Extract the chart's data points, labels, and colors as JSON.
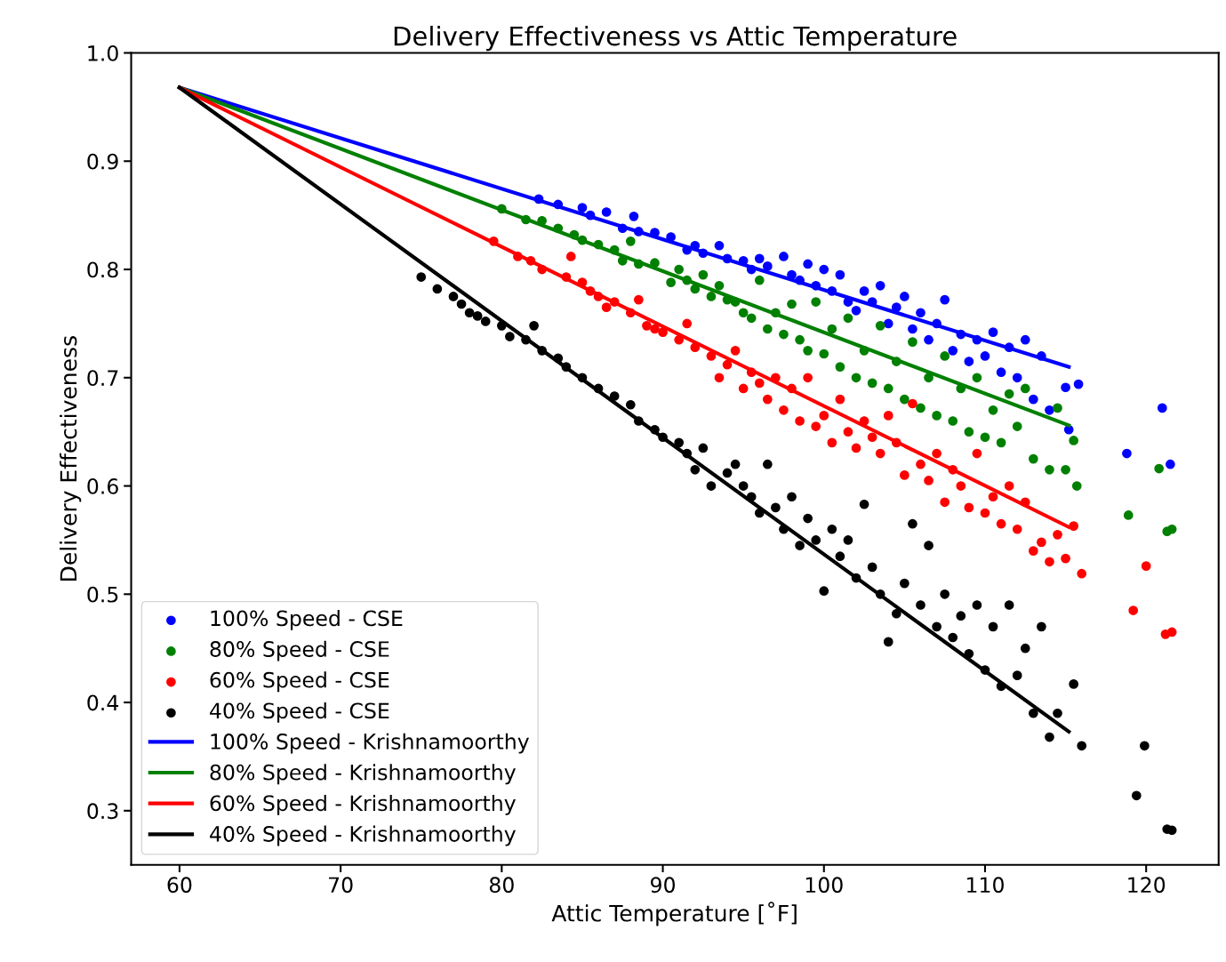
{
  "chart_data": {
    "type": "scatter",
    "title": "Delivery Effectiveness vs Attic Temperature",
    "xlabel": "Attic Temperature [˚F]",
    "ylabel": "Delivery Effectiveness",
    "xlim": [
      57,
      124.5
    ],
    "ylim": [
      0.25,
      1.0
    ],
    "xticks": [
      60,
      70,
      80,
      90,
      100,
      110,
      120
    ],
    "yticks": [
      0.3,
      0.4,
      0.5,
      0.6,
      0.7,
      0.8,
      0.9,
      {
        "value": 1.0,
        "label": "1.0"
      }
    ],
    "legend": "bottom left",
    "series": [
      {
        "marker": "circle",
        "name": "100% Speed - CSE",
        "color": "#0000ff",
        "x": [
          82.3,
          83.5,
          85,
          85.5,
          86.5,
          87.5,
          88.2,
          88.5,
          89.5,
          90.5,
          91.5,
          92,
          92.5,
          93.5,
          94,
          95,
          95.5,
          96,
          96.5,
          97.5,
          98,
          98.5,
          99,
          99.5,
          100,
          100.5,
          101,
          101.5,
          102,
          102.5,
          103,
          103.5,
          104,
          104.5,
          105,
          105.5,
          106,
          106.5,
          107,
          107.5,
          108,
          108.5,
          109,
          109.5,
          110,
          110.5,
          111,
          111.5,
          112,
          112.5,
          113,
          113.5,
          114,
          115,
          115.2,
          115.8,
          118.8,
          121,
          121.5
        ],
        "values": [
          0.865,
          0.86,
          0.857,
          0.85,
          0.853,
          0.838,
          0.849,
          0.835,
          0.834,
          0.83,
          0.818,
          0.822,
          0.815,
          0.822,
          0.81,
          0.808,
          0.8,
          0.81,
          0.803,
          0.812,
          0.795,
          0.79,
          0.805,
          0.785,
          0.8,
          0.78,
          0.795,
          0.77,
          0.762,
          0.78,
          0.77,
          0.785,
          0.75,
          0.765,
          0.775,
          0.745,
          0.76,
          0.735,
          0.75,
          0.772,
          0.725,
          0.74,
          0.715,
          0.735,
          0.72,
          0.742,
          0.705,
          0.728,
          0.7,
          0.735,
          0.68,
          0.72,
          0.67,
          0.691,
          0.652,
          0.694,
          0.63,
          0.672,
          0.62
        ]
      },
      {
        "marker": "circle",
        "name": "80% Speed - CSE",
        "color": "#008000",
        "x": [
          80,
          81.5,
          82.5,
          83.5,
          84.5,
          85,
          86,
          87,
          87.5,
          88,
          88.5,
          89.5,
          90.5,
          91,
          91.5,
          92,
          92.5,
          93,
          93.5,
          94,
          94.5,
          95,
          95.5,
          96,
          96.5,
          97,
          97.5,
          98,
          98.5,
          99,
          99.5,
          100,
          100.5,
          101,
          101.5,
          102,
          102.5,
          103,
          103.5,
          104,
          104.5,
          105,
          105.5,
          106,
          106.5,
          107,
          107.5,
          108,
          108.5,
          109,
          109.5,
          110,
          110.5,
          111,
          111.5,
          112,
          112.5,
          113,
          114,
          114.5,
          115,
          115.5,
          115.7,
          118.9,
          120.8,
          121.3,
          121.6
        ],
        "values": [
          0.856,
          0.846,
          0.845,
          0.838,
          0.832,
          0.827,
          0.823,
          0.818,
          0.808,
          0.826,
          0.805,
          0.806,
          0.788,
          0.8,
          0.79,
          0.782,
          0.795,
          0.775,
          0.785,
          0.772,
          0.77,
          0.76,
          0.755,
          0.79,
          0.745,
          0.76,
          0.74,
          0.768,
          0.735,
          0.725,
          0.77,
          0.722,
          0.745,
          0.71,
          0.755,
          0.7,
          0.725,
          0.695,
          0.748,
          0.69,
          0.715,
          0.68,
          0.733,
          0.672,
          0.7,
          0.665,
          0.72,
          0.66,
          0.69,
          0.65,
          0.7,
          0.645,
          0.67,
          0.64,
          0.685,
          0.655,
          0.69,
          0.625,
          0.615,
          0.672,
          0.615,
          0.642,
          0.6,
          0.573,
          0.616,
          0.558,
          0.56
        ]
      },
      {
        "marker": "circle",
        "name": "60% Speed - CSE",
        "color": "#ff0000",
        "x": [
          79.5,
          81,
          81.8,
          82.5,
          84,
          84.3,
          85,
          85.5,
          86,
          86.5,
          87,
          88,
          88.5,
          89,
          89.5,
          90,
          91,
          91.5,
          92,
          93,
          93.5,
          94,
          94.5,
          95,
          95.5,
          96,
          96.5,
          97,
          97.5,
          98,
          98.5,
          99,
          99.5,
          100,
          100.5,
          101,
          101.5,
          102,
          102.5,
          103,
          103.5,
          104,
          104.5,
          105,
          105.5,
          106,
          106.5,
          107,
          107.5,
          108,
          108.5,
          109,
          109.5,
          110,
          110.5,
          111,
          111.5,
          112,
          112.5,
          113,
          113.5,
          114,
          114.5,
          115,
          115.5,
          116,
          119.2,
          120,
          121.2,
          121.6
        ],
        "values": [
          0.826,
          0.812,
          0.808,
          0.8,
          0.793,
          0.812,
          0.788,
          0.78,
          0.775,
          0.765,
          0.77,
          0.76,
          0.772,
          0.748,
          0.745,
          0.742,
          0.735,
          0.75,
          0.728,
          0.72,
          0.7,
          0.712,
          0.725,
          0.69,
          0.705,
          0.695,
          0.68,
          0.7,
          0.67,
          0.69,
          0.66,
          0.7,
          0.655,
          0.665,
          0.64,
          0.68,
          0.65,
          0.635,
          0.66,
          0.645,
          0.63,
          0.665,
          0.64,
          0.61,
          0.676,
          0.62,
          0.605,
          0.63,
          0.585,
          0.615,
          0.6,
          0.58,
          0.63,
          0.575,
          0.59,
          0.565,
          0.6,
          0.56,
          0.585,
          0.54,
          0.548,
          0.53,
          0.555,
          0.533,
          0.563,
          0.519,
          0.485,
          0.526,
          0.463,
          0.465
        ]
      },
      {
        "marker": "circle",
        "name": "40% Speed - CSE",
        "color": "#000000",
        "x": [
          75,
          76,
          77,
          77.5,
          78,
          78.5,
          79,
          80,
          80.5,
          81.5,
          82,
          82.5,
          83.5,
          84,
          85,
          86,
          87,
          88,
          88.5,
          89.5,
          90,
          91,
          91.5,
          92,
          92.5,
          93,
          94,
          94.5,
          95,
          95.5,
          96,
          96.5,
          97,
          97.5,
          98,
          98.5,
          99,
          99.5,
          100,
          100.5,
          101,
          101.5,
          102,
          102.5,
          103,
          103.5,
          104,
          104.5,
          105,
          105.5,
          106,
          106.5,
          107,
          107.5,
          108,
          108.5,
          109,
          109.5,
          110,
          110.5,
          111,
          111.5,
          112,
          112.5,
          113,
          113.5,
          114,
          114.5,
          115.5,
          116,
          119.4,
          119.9,
          121.3,
          121.6
        ],
        "values": [
          0.793,
          0.782,
          0.775,
          0.768,
          0.76,
          0.757,
          0.752,
          0.748,
          0.738,
          0.735,
          0.748,
          0.725,
          0.718,
          0.71,
          0.7,
          0.69,
          0.683,
          0.675,
          0.66,
          0.652,
          0.645,
          0.64,
          0.63,
          0.615,
          0.635,
          0.6,
          0.612,
          0.62,
          0.6,
          0.59,
          0.575,
          0.62,
          0.58,
          0.56,
          0.59,
          0.545,
          0.57,
          0.55,
          0.503,
          0.56,
          0.535,
          0.55,
          0.515,
          0.583,
          0.525,
          0.5,
          0.456,
          0.482,
          0.51,
          0.565,
          0.49,
          0.545,
          0.47,
          0.5,
          0.46,
          0.48,
          0.445,
          0.49,
          0.43,
          0.47,
          0.415,
          0.49,
          0.425,
          0.45,
          0.39,
          0.47,
          0.368,
          0.39,
          0.417,
          0.36,
          0.314,
          0.36,
          0.283,
          0.282
        ]
      },
      {
        "type": "line",
        "name": "100% Speed - Krishnamoorthy",
        "color": "#0000ff",
        "x": [
          60,
          115.2
        ],
        "values": [
          0.968,
          0.71
        ]
      },
      {
        "type": "line",
        "name": "80% Speed - Krishnamoorthy",
        "color": "#008000",
        "x": [
          60,
          115.2
        ],
        "values": [
          0.968,
          0.656
        ]
      },
      {
        "type": "line",
        "name": "60% Speed - Krishnamoorthy",
        "color": "#ff0000",
        "x": [
          60,
          115.2
        ],
        "values": [
          0.968,
          0.562
        ]
      },
      {
        "type": "line",
        "name": "40% Speed - Krishnamoorthy",
        "color": "#000000",
        "x": [
          60,
          115.2
        ],
        "values": [
          0.968,
          0.373
        ]
      }
    ]
  }
}
